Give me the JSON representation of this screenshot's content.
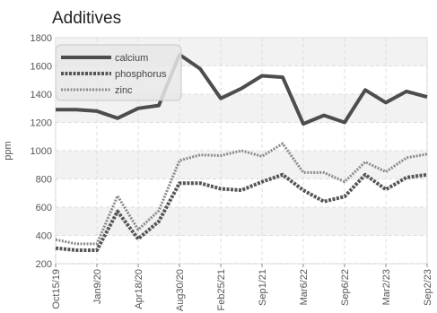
{
  "chart_data": {
    "type": "line",
    "title": "Additives",
    "ylabel": "ppm",
    "xlabel": "",
    "ylim": [
      200,
      1800
    ],
    "yticks": [
      200,
      400,
      600,
      800,
      1000,
      1200,
      1400,
      1600,
      1800
    ],
    "grid": true,
    "legend_position": "top-left",
    "x_tick_labels": [
      "Oct15/19",
      "Jan9/20",
      "Apr18/20",
      "Aug30/20",
      "Feb25/21",
      "Sep1/21",
      "Mar6/22",
      "Sep6/22",
      "Mar2/23",
      "Sep2/23"
    ],
    "series": [
      {
        "name": "calcium",
        "color": "#4d4d4d",
        "style": "solid",
        "values": [
          1290,
          1290,
          1280,
          1230,
          1300,
          1320,
          1680,
          1580,
          1370,
          1440,
          1530,
          1520,
          1190,
          1250,
          1200,
          1430,
          1340,
          1420,
          1380
        ]
      },
      {
        "name": "phosphorus",
        "color": "#555555",
        "style": "dashed",
        "values": [
          310,
          295,
          295,
          570,
          375,
          500,
          770,
          770,
          730,
          720,
          780,
          830,
          720,
          640,
          675,
          830,
          725,
          810,
          830
        ]
      },
      {
        "name": "zinc",
        "color": "#8a8a8a",
        "style": "dashed",
        "values": [
          370,
          340,
          340,
          680,
          440,
          575,
          930,
          970,
          965,
          1000,
          960,
          1050,
          845,
          845,
          780,
          920,
          850,
          950,
          975
        ]
      }
    ]
  }
}
